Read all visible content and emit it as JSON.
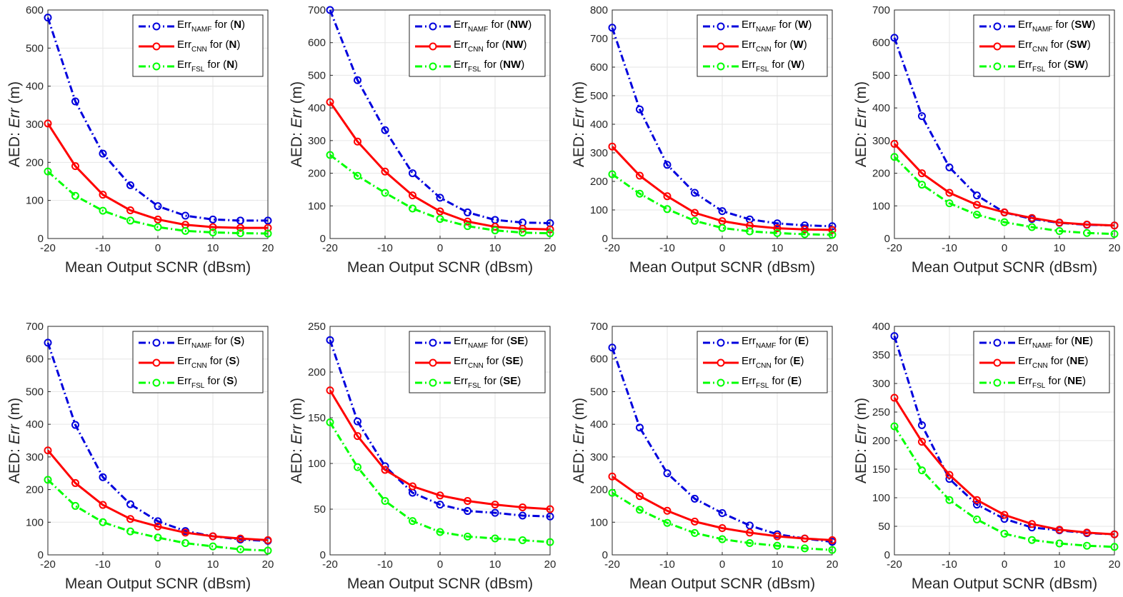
{
  "chart_data": [
    {
      "type": "line",
      "panel": "N",
      "xlabel": "Mean Output SCNR (dBsm)",
      "ylabel_prefix": "AED: ",
      "ylabel_var": "Err",
      "ylabel_suffix": " (m)",
      "x": [
        -20,
        -15,
        -10,
        -5,
        0,
        5,
        10,
        15,
        20
      ],
      "xlim": [
        -20,
        20
      ],
      "ylim": [
        0,
        600
      ],
      "xticks": [
        "-20",
        "-10",
        "0",
        "10",
        "20"
      ],
      "yticks": [
        "0",
        "100",
        "200",
        "300",
        "400",
        "500",
        "600"
      ],
      "grid": true,
      "legend_position": "top-right",
      "series": [
        {
          "name": "Err_NAMF for (N)",
          "base": "Err",
          "sub": "NAMF",
          "mid": " for (",
          "label": "N",
          "end": ")",
          "color": "#0000dd",
          "style": "dashdot",
          "values": [
            580,
            360,
            223,
            140,
            85,
            60,
            50,
            47,
            47
          ]
        },
        {
          "name": "Err_CNN for (N)",
          "base": "Err",
          "sub": "CNN",
          "mid": " for (",
          "label": "N",
          "end": ")",
          "color": "#ff0000",
          "style": "solid",
          "values": [
            302,
            190,
            115,
            74,
            50,
            36,
            30,
            28,
            28
          ]
        },
        {
          "name": "Err_FSL for (N)",
          "base": "Err",
          "sub": "FSL",
          "mid": " for (",
          "label": "N",
          "end": ")",
          "color": "#00ff00",
          "style": "dashdot",
          "values": [
            176,
            112,
            73,
            47,
            30,
            20,
            16,
            14,
            13
          ]
        }
      ]
    },
    {
      "type": "line",
      "panel": "NW",
      "xlabel": "Mean Output SCNR (dBsm)",
      "ylabel_prefix": "AED: ",
      "ylabel_var": "Err",
      "ylabel_suffix": " (m)",
      "x": [
        -20,
        -15,
        -10,
        -5,
        0,
        5,
        10,
        15,
        20
      ],
      "xlim": [
        -20,
        20
      ],
      "ylim": [
        0,
        700
      ],
      "xticks": [
        "-20",
        "-10",
        "0",
        "10",
        "20"
      ],
      "yticks": [
        "0",
        "100",
        "200",
        "300",
        "400",
        "500",
        "600",
        "700"
      ],
      "grid": true,
      "legend_position": "top-right",
      "series": [
        {
          "name": "Err_NAMF for (NW)",
          "base": "Err",
          "sub": "NAMF",
          "mid": " for (",
          "label": "NW",
          "end": ")",
          "color": "#0000dd",
          "style": "dashdot",
          "values": [
            700,
            485,
            332,
            200,
            125,
            80,
            57,
            49,
            47
          ]
        },
        {
          "name": "Err_CNN for (NW)",
          "base": "Err",
          "sub": "CNN",
          "mid": " for (",
          "label": "NW",
          "end": ")",
          "color": "#ff0000",
          "style": "solid",
          "values": [
            418,
            297,
            205,
            132,
            83,
            52,
            36,
            30,
            28
          ]
        },
        {
          "name": "Err_FSL for (NW)",
          "base": "Err",
          "sub": "FSL",
          "mid": " for (",
          "label": "NW",
          "end": ")",
          "color": "#00ff00",
          "style": "dashdot",
          "values": [
            256,
            192,
            140,
            92,
            60,
            38,
            25,
            18,
            16
          ]
        }
      ]
    },
    {
      "type": "line",
      "panel": "W",
      "xlabel": "Mean Output SCNR (dBsm)",
      "ylabel_prefix": "AED: ",
      "ylabel_var": "Err",
      "ylabel_suffix": " (m)",
      "x": [
        -20,
        -15,
        -10,
        -5,
        0,
        5,
        10,
        15,
        20
      ],
      "xlim": [
        -20,
        20
      ],
      "ylim": [
        0,
        800
      ],
      "xticks": [
        "-20",
        "-10",
        "0",
        "10",
        "20"
      ],
      "yticks": [
        "0",
        "100",
        "200",
        "300",
        "400",
        "500",
        "600",
        "700",
        "800"
      ],
      "grid": true,
      "legend_position": "top-right",
      "series": [
        {
          "name": "Err_NAMF for (W)",
          "base": "Err",
          "sub": "NAMF",
          "mid": " for (",
          "label": "W",
          "end": ")",
          "color": "#0000dd",
          "style": "dashdot",
          "values": [
            738,
            452,
            258,
            160,
            96,
            67,
            53,
            46,
            43
          ]
        },
        {
          "name": "Err_CNN for (W)",
          "base": "Err",
          "sub": "CNN",
          "mid": " for (",
          "label": "W",
          "end": ")",
          "color": "#ff0000",
          "style": "solid",
          "values": [
            322,
            220,
            148,
            90,
            61,
            45,
            36,
            32,
            30
          ]
        },
        {
          "name": "Err_FSL for (W)",
          "base": "Err",
          "sub": "FSL",
          "mid": " for (",
          "label": "W",
          "end": ")",
          "color": "#00ff00",
          "style": "dashdot",
          "values": [
            225,
            157,
            103,
            62,
            37,
            25,
            19,
            15,
            13
          ]
        }
      ]
    },
    {
      "type": "line",
      "panel": "SW",
      "xlabel": "Mean Output SCNR (dBsm)",
      "ylabel_prefix": "AED: ",
      "ylabel_var": "Err",
      "ylabel_suffix": " (m)",
      "x": [
        -20,
        -15,
        -10,
        -5,
        0,
        5,
        10,
        15,
        20
      ],
      "xlim": [
        -20,
        20
      ],
      "ylim": [
        0,
        700
      ],
      "xticks": [
        "-20",
        "-10",
        "0",
        "10",
        "20"
      ],
      "yticks": [
        "0",
        "100",
        "200",
        "300",
        "400",
        "500",
        "600",
        "700"
      ],
      "grid": true,
      "legend_position": "top-right",
      "series": [
        {
          "name": "Err_NAMF for (SW)",
          "base": "Err",
          "sub": "NAMF",
          "mid": " for (",
          "label": "SW",
          "end": ")",
          "color": "#0000dd",
          "style": "dashdot",
          "values": [
            615,
            375,
            218,
            132,
            80,
            60,
            48,
            42,
            40
          ]
        },
        {
          "name": "Err_CNN for (SW)",
          "base": "Err",
          "sub": "CNN",
          "mid": " for (",
          "label": "SW",
          "end": ")",
          "color": "#ff0000",
          "style": "solid",
          "values": [
            290,
            200,
            140,
            103,
            80,
            63,
            49,
            43,
            40
          ]
        },
        {
          "name": "Err_FSL for (SW)",
          "base": "Err",
          "sub": "FSL",
          "mid": " for (",
          "label": "SW",
          "end": ")",
          "color": "#00ff00",
          "style": "dashdot",
          "values": [
            250,
            165,
            108,
            73,
            50,
            35,
            23,
            17,
            14
          ]
        }
      ]
    },
    {
      "type": "line",
      "panel": "S",
      "xlabel": "Mean Output SCNR (dBsm)",
      "ylabel_prefix": "AED: ",
      "ylabel_var": "Err",
      "ylabel_suffix": " (m)",
      "x": [
        -20,
        -15,
        -10,
        -5,
        0,
        5,
        10,
        15,
        20
      ],
      "xlim": [
        -20,
        20
      ],
      "ylim": [
        0,
        700
      ],
      "xticks": [
        "-20",
        "-10",
        "0",
        "10",
        "20"
      ],
      "yticks": [
        "0",
        "100",
        "200",
        "300",
        "400",
        "500",
        "600",
        "700"
      ],
      "grid": true,
      "legend_position": "top-right",
      "series": [
        {
          "name": "Err_NAMF for (S)",
          "base": "Err",
          "sub": "NAMF",
          "mid": " for (",
          "label": "S",
          "end": ")",
          "color": "#0000dd",
          "style": "dashdot",
          "values": [
            650,
            398,
            238,
            155,
            103,
            73,
            57,
            47,
            43
          ]
        },
        {
          "name": "Err_CNN for (S)",
          "base": "Err",
          "sub": "CNN",
          "mid": " for (",
          "label": "S",
          "end": ")",
          "color": "#ff0000",
          "style": "solid",
          "values": [
            320,
            220,
            153,
            110,
            87,
            68,
            57,
            50,
            45
          ]
        },
        {
          "name": "Err_FSL for (S)",
          "base": "Err",
          "sub": "FSL",
          "mid": " for (",
          "label": "S",
          "end": ")",
          "color": "#00ff00",
          "style": "dashdot",
          "values": [
            230,
            150,
            100,
            72,
            53,
            36,
            26,
            17,
            13
          ]
        }
      ]
    },
    {
      "type": "line",
      "panel": "SE",
      "xlabel": "Mean Output SCNR (dBsm)",
      "ylabel_prefix": "AED: ",
      "ylabel_var": "Err",
      "ylabel_suffix": " (m)",
      "x": [
        -20,
        -15,
        -10,
        -5,
        0,
        5,
        10,
        15,
        20
      ],
      "xlim": [
        -20,
        20
      ],
      "ylim": [
        0,
        250
      ],
      "xticks": [
        "-20",
        "-10",
        "0",
        "10",
        "20"
      ],
      "yticks": [
        "0",
        "50",
        "100",
        "150",
        "200",
        "250"
      ],
      "grid": true,
      "legend_position": "top-right",
      "series": [
        {
          "name": "Err_NAMF for (SE)",
          "base": "Err",
          "sub": "NAMF",
          "mid": " for (",
          "label": "SE",
          "end": ")",
          "color": "#0000dd",
          "style": "dashdot",
          "values": [
            235,
            146,
            97,
            68,
            55,
            48,
            46,
            43,
            42
          ]
        },
        {
          "name": "Err_CNN for (SE)",
          "base": "Err",
          "sub": "CNN",
          "mid": " for (",
          "label": "SE",
          "end": ")",
          "color": "#ff0000",
          "style": "solid",
          "values": [
            180,
            130,
            93,
            75,
            65,
            59,
            55,
            52,
            50
          ]
        },
        {
          "name": "Err_FSL for (SE)",
          "base": "Err",
          "sub": "FSL",
          "mid": " for (",
          "label": "SE",
          "end": ")",
          "color": "#00ff00",
          "style": "dashdot",
          "values": [
            145,
            96,
            59,
            37,
            25,
            20,
            18,
            16,
            14
          ]
        }
      ]
    },
    {
      "type": "line",
      "panel": "E",
      "xlabel": "Mean Output SCNR (dBsm)",
      "ylabel_prefix": "AED: ",
      "ylabel_var": "Err",
      "ylabel_suffix": " (m)",
      "x": [
        -20,
        -15,
        -10,
        -5,
        0,
        5,
        10,
        15,
        20
      ],
      "xlim": [
        -20,
        20
      ],
      "ylim": [
        0,
        700
      ],
      "xticks": [
        "-20",
        "-10",
        "0",
        "10",
        "20"
      ],
      "yticks": [
        "0",
        "100",
        "200",
        "300",
        "400",
        "500",
        "600",
        "700"
      ],
      "grid": true,
      "legend_position": "top-right",
      "series": [
        {
          "name": "Err_NAMF for (E)",
          "base": "Err",
          "sub": "NAMF",
          "mid": " for (",
          "label": "E",
          "end": ")",
          "color": "#0000dd",
          "style": "dashdot",
          "values": [
            635,
            390,
            250,
            172,
            128,
            90,
            63,
            50,
            40
          ]
        },
        {
          "name": "Err_CNN for (E)",
          "base": "Err",
          "sub": "CNN",
          "mid": " for (",
          "label": "E",
          "end": ")",
          "color": "#ff0000",
          "style": "solid",
          "values": [
            240,
            180,
            135,
            102,
            82,
            68,
            57,
            50,
            45
          ]
        },
        {
          "name": "Err_FSL for (E)",
          "base": "Err",
          "sub": "FSL",
          "mid": " for (",
          "label": "E",
          "end": ")",
          "color": "#00ff00",
          "style": "dashdot",
          "values": [
            190,
            138,
            98,
            67,
            48,
            36,
            28,
            20,
            15
          ]
        }
      ]
    },
    {
      "type": "line",
      "panel": "NE",
      "xlabel": "Mean Output SCNR (dBsm)",
      "ylabel_prefix": "AED: ",
      "ylabel_var": "Err",
      "ylabel_suffix": " (m)",
      "x": [
        -20,
        -15,
        -10,
        -5,
        0,
        5,
        10,
        15,
        20
      ],
      "xlim": [
        -20,
        20
      ],
      "ylim": [
        0,
        400
      ],
      "xticks": [
        "-20",
        "-10",
        "0",
        "10",
        "20"
      ],
      "yticks": [
        "0",
        "50",
        "100",
        "150",
        "200",
        "250",
        "300",
        "350",
        "400"
      ],
      "grid": true,
      "legend_position": "top-right",
      "series": [
        {
          "name": "Err_NAMF for (NE)",
          "base": "Err",
          "sub": "NAMF",
          "mid": " for (",
          "label": "NE",
          "end": ")",
          "color": "#0000dd",
          "style": "dashdot",
          "values": [
            383,
            227,
            133,
            88,
            63,
            48,
            43,
            38,
            36
          ]
        },
        {
          "name": "Err_CNN for (NE)",
          "base": "Err",
          "sub": "CNN",
          "mid": " for (",
          "label": "NE",
          "end": ")",
          "color": "#ff0000",
          "style": "solid",
          "values": [
            275,
            198,
            140,
            96,
            70,
            54,
            44,
            39,
            36
          ]
        },
        {
          "name": "Err_FSL for (NE)",
          "base": "Err",
          "sub": "FSL",
          "mid": " for (",
          "label": "NE",
          "end": ")",
          "color": "#00ff00",
          "style": "dashdot",
          "values": [
            225,
            148,
            96,
            62,
            37,
            26,
            20,
            16,
            14
          ]
        }
      ]
    }
  ]
}
